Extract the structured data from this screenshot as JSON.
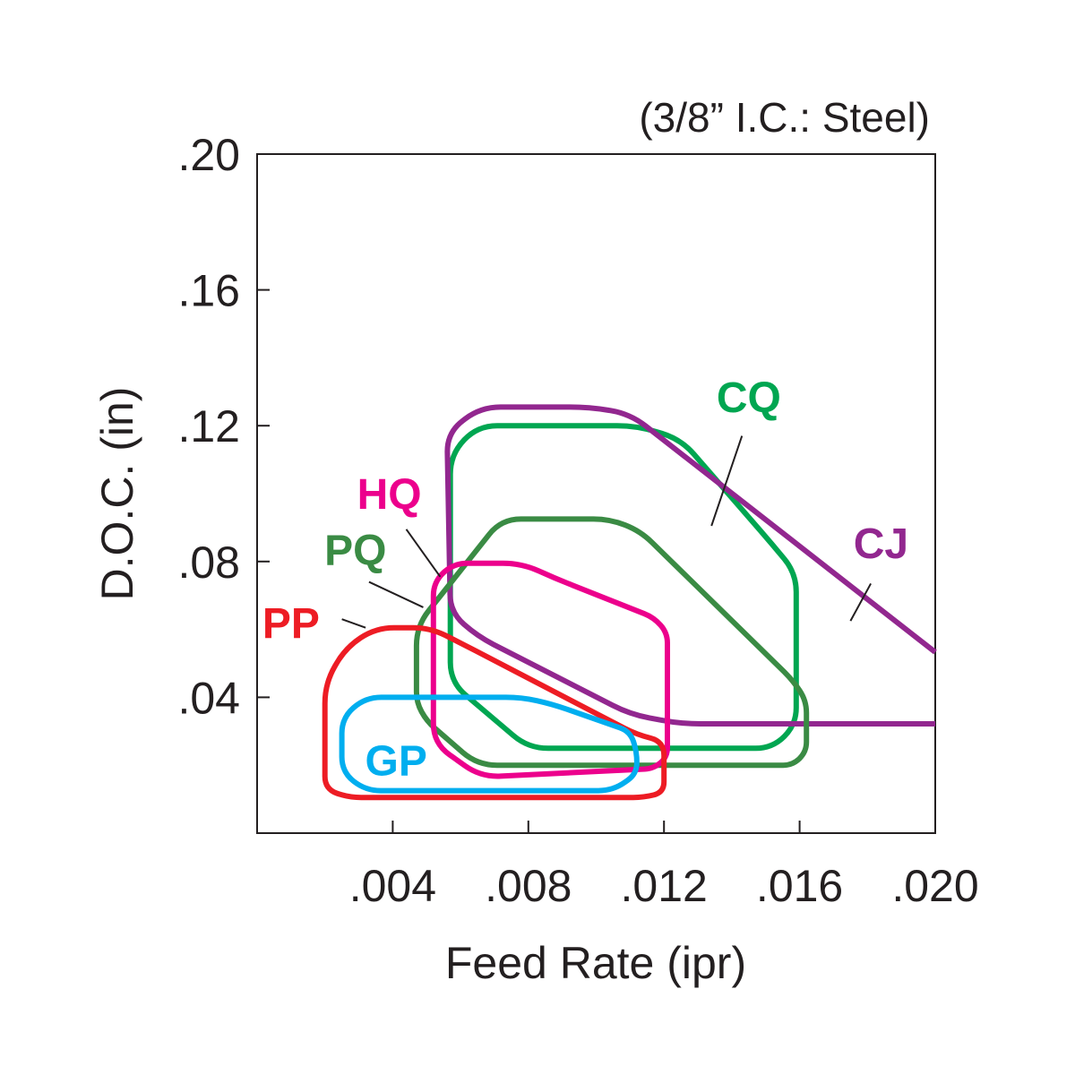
{
  "chart_data": {
    "type": "area",
    "subtitle": "(3/8” I.C.: Steel)",
    "xlabel": "Feed Rate (ipr)",
    "ylabel": "D.O.C. (in)",
    "xlim": [
      0,
      0.02
    ],
    "ylim": [
      0,
      0.2
    ],
    "x_ticks": [
      0.004,
      0.008,
      0.012,
      0.016,
      0.02
    ],
    "x_tick_labels": [
      ".004",
      ".008",
      ".012",
      ".016",
      ".020"
    ],
    "y_ticks": [
      0.04,
      0.08,
      0.12,
      0.16,
      0.2
    ],
    "y_tick_labels": [
      ".04",
      ".08",
      ".12",
      ".16",
      ".20"
    ],
    "grid": false,
    "series": [
      {
        "name": "CQ",
        "color": "#00a651",
        "closed": true,
        "points": [
          [
            0.0057,
            0.1115
          ],
          [
            0.0057,
            0.0445
          ],
          [
            0.008,
            0.025
          ],
          [
            0.0152,
            0.025
          ],
          [
            0.0159,
            0.032
          ],
          [
            0.0159,
            0.0765
          ],
          [
            0.0152,
            0.085
          ],
          [
            0.0125,
            0.116
          ],
          [
            0.0112,
            0.12
          ],
          [
            0.0065,
            0.12
          ]
        ]
      },
      {
        "name": "CJ",
        "color": "#92278f",
        "closed": false,
        "points": [
          [
            0.02,
            0.0322
          ],
          [
            0.0125,
            0.0322
          ],
          [
            0.011,
            0.035
          ],
          [
            0.0065,
            0.058
          ],
          [
            0.0057,
            0.065
          ],
          [
            0.0056,
            0.118
          ],
          [
            0.0066,
            0.1255
          ],
          [
            0.0098,
            0.1255
          ],
          [
            0.011,
            0.1235
          ],
          [
            0.02,
            0.0533
          ]
        ]
      },
      {
        "name": "PQ",
        "color": "#3a8b44",
        "closed": true,
        "points": [
          [
            0.0047,
            0.0385
          ],
          [
            0.0047,
            0.061
          ],
          [
            0.0072,
            0.0925
          ],
          [
            0.0104,
            0.0925
          ],
          [
            0.0113,
            0.089
          ],
          [
            0.0158,
            0.045
          ],
          [
            0.0162,
            0.039
          ],
          [
            0.0162,
            0.024
          ],
          [
            0.0158,
            0.02
          ],
          [
            0.0065,
            0.02
          ],
          [
            0.005,
            0.033
          ]
        ]
      },
      {
        "name": "HQ",
        "color": "#ec008c",
        "closed": true,
        "points": [
          [
            0.0052,
            0.0265
          ],
          [
            0.0052,
            0.074
          ],
          [
            0.0058,
            0.0795
          ],
          [
            0.0078,
            0.0795
          ],
          [
            0.0088,
            0.075
          ],
          [
            0.0117,
            0.0635
          ],
          [
            0.0121,
            0.059
          ],
          [
            0.0121,
            0.0225
          ],
          [
            0.0117,
            0.019
          ],
          [
            0.0066,
            0.0165
          ]
        ]
      },
      {
        "name": "PP",
        "color": "#ed1c24",
        "closed": true,
        "points": [
          [
            0.002,
            0.044
          ],
          [
            0.002,
            0.013
          ],
          [
            0.0027,
            0.0105
          ],
          [
            0.0114,
            0.0105
          ],
          [
            0.012,
            0.012
          ],
          [
            0.012,
            0.027
          ],
          [
            0.0112,
            0.029
          ],
          [
            0.006,
            0.056
          ],
          [
            0.0051,
            0.0605
          ],
          [
            0.0035,
            0.0605
          ],
          [
            0.0026,
            0.0545
          ]
        ]
      },
      {
        "name": "GP",
        "color": "#00aeef",
        "closed": true,
        "points": [
          [
            0.0025,
            0.018
          ],
          [
            0.0025,
            0.034
          ],
          [
            0.0032,
            0.04
          ],
          [
            0.0078,
            0.04
          ],
          [
            0.0087,
            0.038
          ],
          [
            0.011,
            0.03
          ],
          [
            0.0112,
            0.024
          ],
          [
            0.0112,
            0.0175
          ],
          [
            0.0105,
            0.0125
          ],
          [
            0.0032,
            0.0125
          ]
        ]
      }
    ],
    "annotations": [
      {
        "text": "CQ",
        "series": "CQ",
        "x": 0.0145,
        "y": 0.1285,
        "leader": [
          [
            0.0143,
            0.117
          ],
          [
            0.0134,
            0.0905
          ]
        ]
      },
      {
        "text": "CJ",
        "series": "CJ",
        "x": 0.0184,
        "y": 0.0855,
        "leader": [
          [
            0.0181,
            0.0735
          ],
          [
            0.0175,
            0.0625
          ]
        ]
      },
      {
        "text": "HQ",
        "series": "HQ",
        "x": 0.0039,
        "y": 0.1,
        "leader": [
          [
            0.0044,
            0.0895
          ],
          [
            0.0054,
            0.0755
          ]
        ]
      },
      {
        "text": "PQ",
        "series": "PQ",
        "x": 0.0029,
        "y": 0.0835,
        "leader": [
          [
            0.0033,
            0.074
          ],
          [
            0.0049,
            0.0665
          ]
        ]
      },
      {
        "text": "PP",
        "series": "PP",
        "x": 0.001,
        "y": 0.062,
        "leader": [
          [
            0.0025,
            0.063
          ],
          [
            0.0032,
            0.0605
          ]
        ]
      },
      {
        "text": "GP",
        "series": "GP",
        "x": 0.0041,
        "y": 0.0215,
        "leader": null
      }
    ]
  }
}
